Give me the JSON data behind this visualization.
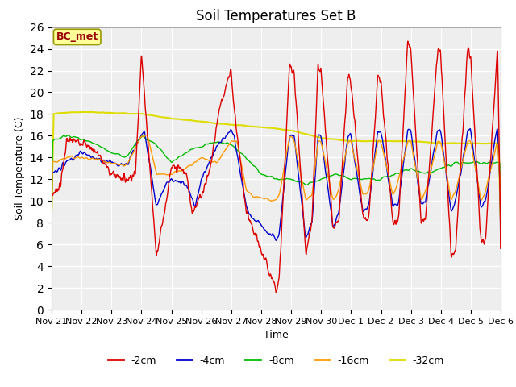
{
  "title": "Soil Temperatures Set B",
  "xlabel": "Time",
  "ylabel": "Soil Temperature (C)",
  "ylim": [
    0,
    26
  ],
  "yticks": [
    0,
    2,
    4,
    6,
    8,
    10,
    12,
    14,
    16,
    18,
    20,
    22,
    24,
    26
  ],
  "xtick_labels": [
    "Nov 21",
    "Nov 22",
    "Nov 23",
    "Nov 24",
    "Nov 25",
    "Nov 26",
    "Nov 27",
    "Nov 28",
    "Nov 29",
    "Nov 30",
    "Dec 1",
    "Dec 2",
    "Dec 3",
    "Dec 4",
    "Dec 5",
    "Dec 6"
  ],
  "colors": {
    "-2cm": "#dd0000",
    "-4cm": "#0000cc",
    "-8cm": "#00bb00",
    "-16cm": "#ff9900",
    "-32cm": "#dddd00"
  },
  "legend_label": "BC_met",
  "fig_facecolor": "#ffffff",
  "plot_facecolor": "#eeeeee",
  "annotation_facecolor": "#ffff99",
  "annotation_edgecolor": "#999900",
  "grid_color": "#ffffff",
  "title_fontsize": 12,
  "axis_fontsize": 9,
  "tick_fontsize": 8
}
